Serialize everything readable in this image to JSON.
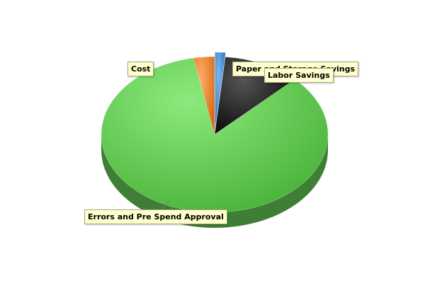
{
  "chart_data": {
    "type": "pie",
    "style": "3d",
    "title": "",
    "legend": "none",
    "slices": [
      {
        "name": "Paper and Storage Savings",
        "value": 1.5,
        "color": "#4a90d9",
        "exploded": true
      },
      {
        "name": "Labor Savings",
        "value": 11.0,
        "color": "#222222",
        "exploded": false
      },
      {
        "name": "Errors and Pre Spend Approval",
        "value": 84.5,
        "color": "#66cc55",
        "exploded": false
      },
      {
        "name": "Cost",
        "value": 3.0,
        "color": "#ee8833",
        "exploded": false
      }
    ]
  }
}
